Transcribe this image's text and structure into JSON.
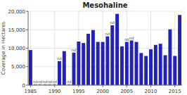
{
  "chart_data": {
    "type": "bar",
    "title": "Mesohaline",
    "y_label": "Coverage in Hectares",
    "x": [
      1985,
      1986,
      1987,
      1988,
      1989,
      1990,
      1991,
      1992,
      1993,
      1994,
      1995,
      1996,
      1997,
      1998,
      1999,
      2000,
      2001,
      2002,
      2003,
      2004,
      2005,
      2006,
      2007,
      2008,
      2009,
      2010,
      2011,
      2012,
      2013,
      2014,
      2015,
      2016
    ],
    "values": [
      9500,
      300,
      300,
      300,
      300,
      300,
      6500,
      9200,
      300,
      8800,
      11800,
      11400,
      13900,
      14900,
      11700,
      11700,
      13200,
      16200,
      19300,
      10500,
      11700,
      12100,
      11700,
      8700,
      7900,
      9700,
      10900,
      11200,
      8100,
      15100,
      7900,
      19000
    ],
    "colors": [
      "#2222bb",
      "#9999cc",
      "#9999cc",
      "#9999cc",
      "#9999cc",
      "#9999cc",
      "#2222bb",
      "#2222bb",
      "#9999cc",
      "#2222bb",
      "#2222bb",
      "#2222bb",
      "#2222bb",
      "#2222bb",
      "#2222bb",
      "#2222bb",
      "#2222bb",
      "#2222bb",
      "#2222bb",
      "#2222bb",
      "#2222bb",
      "#2222bb",
      "#2222bb",
      "#2222bb",
      "#2222bb",
      "#2222bb",
      "#2222bb",
      "#2222bb",
      "#2222bb",
      "#2222bb",
      "#2222bb",
      "#2222bb"
    ],
    "annotations": [
      {
        "text": "nd",
        "x": 1986
      },
      {
        "text": "nd",
        "x": 1987
      },
      {
        "text": "nd",
        "x": 1988
      },
      {
        "text": "nd",
        "x": 1989
      },
      {
        "text": "nd",
        "x": 1990
      },
      {
        "text": "nd",
        "x": 1993
      },
      {
        "text": "nd",
        "x": 1991
      },
      {
        "text": "nd",
        "x": 1994
      },
      {
        "text": "nd",
        "x": 2001
      },
      {
        "text": "nd",
        "x": 2002
      },
      {
        "text": "nd",
        "x": 2005
      },
      {
        "text": "nd",
        "x": 2006
      }
    ],
    "xlim": [
      1984.5,
      2016.5
    ],
    "xticks": [
      1985,
      1990,
      1995,
      2000,
      2005,
      2010,
      2015
    ],
    "ylim": [
      0,
      20000
    ],
    "yticks": [
      0,
      {
        "value": 5000,
        "label": "5,000"
      },
      {
        "value": 10000,
        "label": "10,000"
      },
      {
        "value": 15000,
        "label": "15,000"
      },
      {
        "value": 20000,
        "label": "20,000"
      }
    ],
    "grid": true
  }
}
